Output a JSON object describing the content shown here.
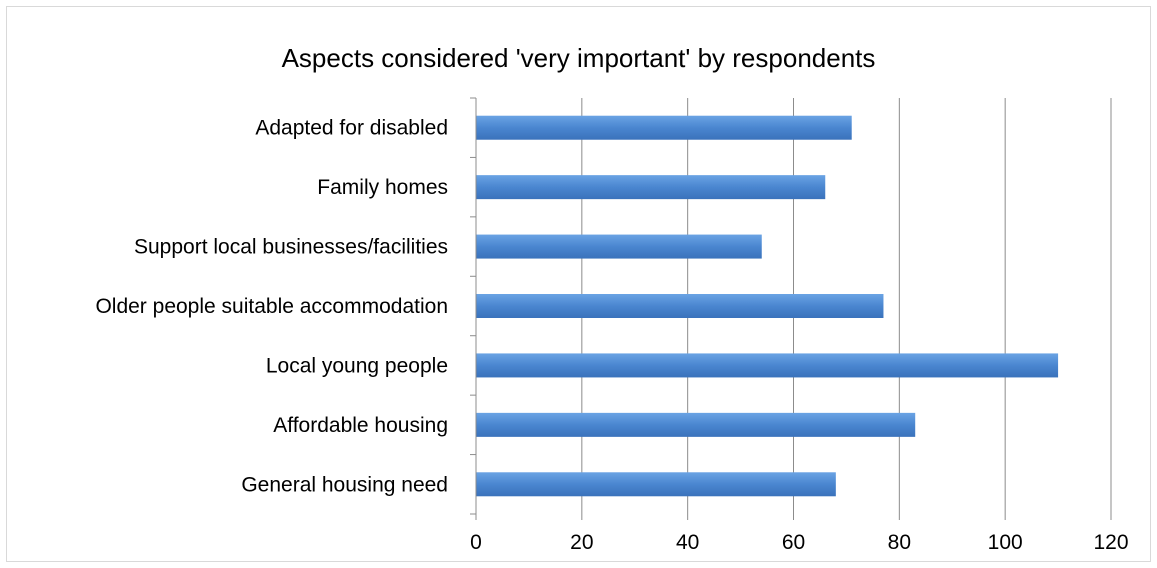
{
  "chart_data": {
    "type": "bar",
    "orientation": "horizontal",
    "title": "Aspects considered 'very important' by respondents",
    "xlabel": "",
    "ylabel": "",
    "categories": [
      "Adapted for disabled",
      "Family homes",
      "Support local businesses/facilities",
      "Older people suitable accommodation",
      "Local young people",
      "Affordable housing",
      "General housing need"
    ],
    "values": [
      71,
      66,
      54,
      77,
      110,
      83,
      68
    ],
    "xlim": [
      0,
      120
    ],
    "xticks": [
      "0",
      "20",
      "40",
      "60",
      "80",
      "100",
      "120"
    ],
    "grid": "vertical",
    "legend": "none",
    "bar_color": "#4a86d0"
  }
}
